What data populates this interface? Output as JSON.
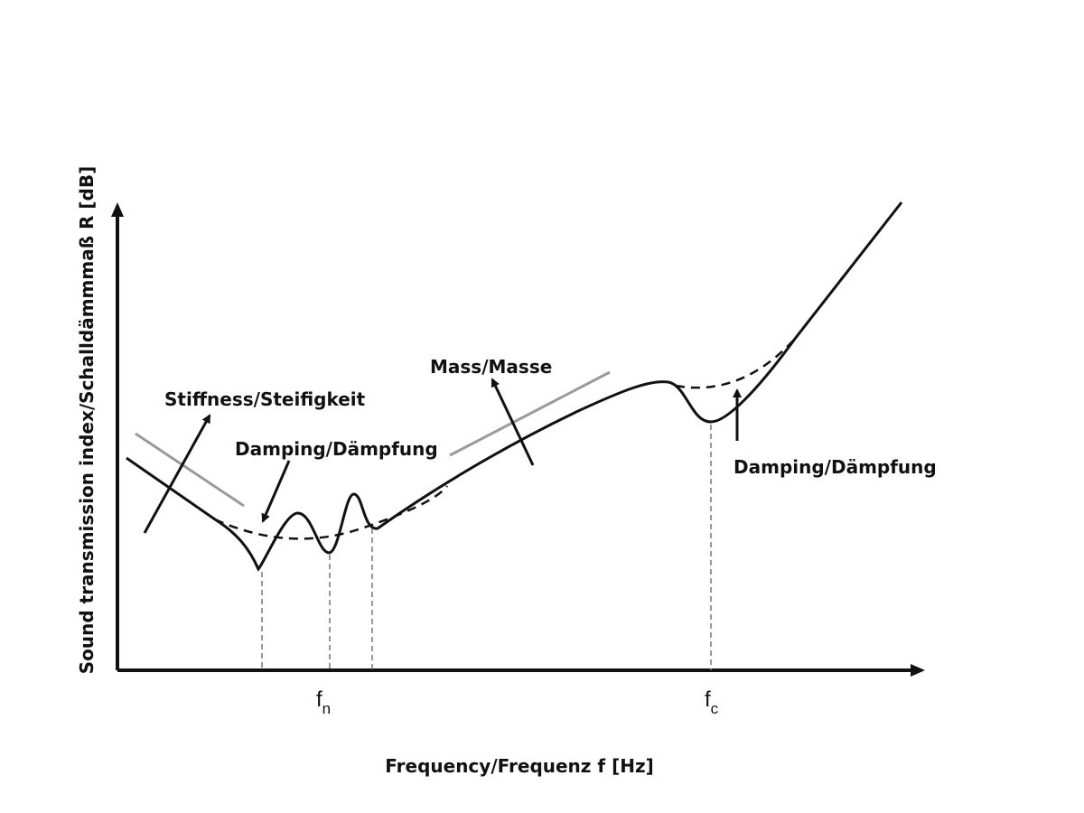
{
  "diagram": {
    "y_axis_title": "Sound transmission index/Schalldämmmaß R [dB]",
    "x_axis_title": "Frequency/Frequenz f [Hz]",
    "labels": {
      "stiffness": "Stiffness/Steifigkeit",
      "mass": "Mass/Masse",
      "damping_left": "Damping/Dämpfung",
      "damping_right": "Damping/Dämpfung"
    },
    "markers": {
      "fn_base": "f",
      "fn_sub": "n",
      "fc_base": "f",
      "fc_sub": "c"
    },
    "colors": {
      "curve": "#111111",
      "guide_line": "#9a9a9a",
      "drop_line": "#777777"
    }
  }
}
